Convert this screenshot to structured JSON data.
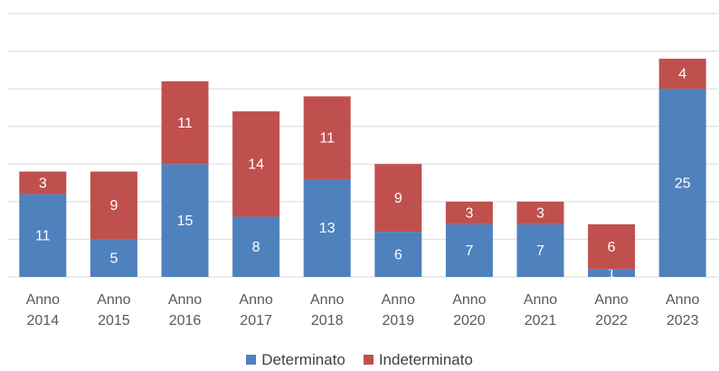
{
  "chart_data": {
    "type": "stacked_bar",
    "categories": [
      "Anno 2014",
      "Anno 2015",
      "Anno 2016",
      "Anno 2017",
      "Anno 2018",
      "Anno 2019",
      "Anno 2020",
      "Anno 2021",
      "Anno 2022",
      "Anno 2023"
    ],
    "series": [
      {
        "name": "Determinato",
        "color": "#4f81bd",
        "values": [
          11,
          5,
          15,
          8,
          13,
          6,
          7,
          7,
          1,
          25
        ]
      },
      {
        "name": "Indeterminato",
        "color": "#c0504d",
        "values": [
          3,
          9,
          11,
          14,
          11,
          9,
          3,
          3,
          6,
          4
        ]
      }
    ],
    "ylim": [
      0,
      35
    ],
    "yticks": [
      0,
      5,
      10,
      15,
      20,
      25,
      30,
      35
    ],
    "grid": true,
    "legend": "bottom"
  }
}
